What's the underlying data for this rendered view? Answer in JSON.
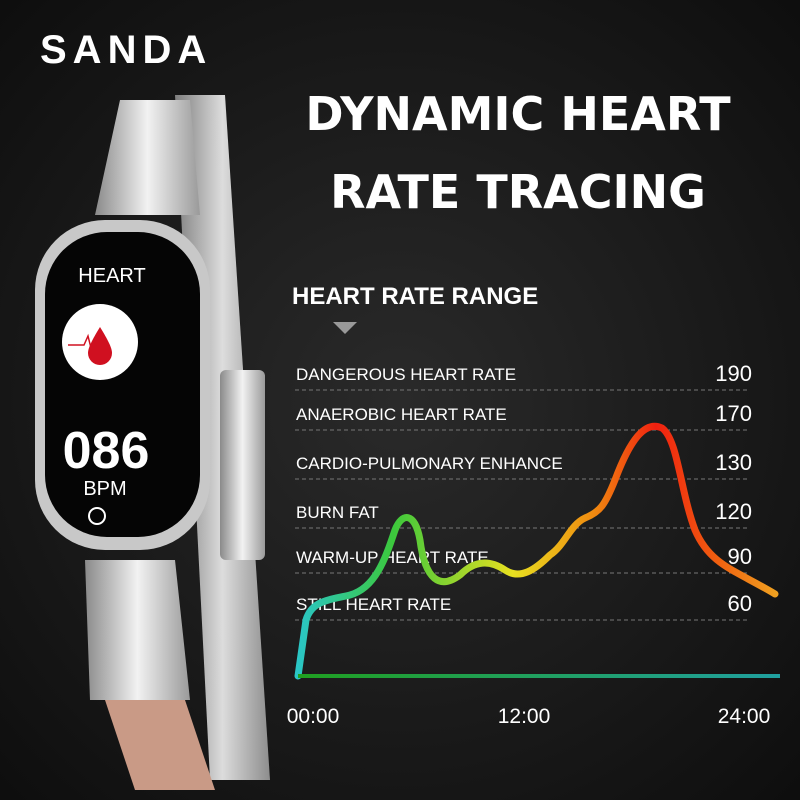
{
  "brand": "SANDA",
  "title": [
    "DYNAMIC HEART",
    "RATE TRACING"
  ],
  "watch": {
    "label": "HEART",
    "reading": "086",
    "unit": "BPM"
  },
  "range_title": "HEART RATE RANGE",
  "zones": [
    {
      "label": "DANGEROUS HEART RATE",
      "value": 190
    },
    {
      "label": "ANAEROBIC HEART RATE",
      "value": 170
    },
    {
      "label": "CARDIO-PULMONARY ENHANCE",
      "value": 130
    },
    {
      "label": "BURN FAT",
      "value": 120
    },
    {
      "label": "WARM-UP HEART RATE",
      "value": 90
    },
    {
      "label": "STILL HEART RATE",
      "value": 60
    }
  ],
  "time_labels": [
    "00:00",
    "12:00",
    "24:00"
  ]
}
